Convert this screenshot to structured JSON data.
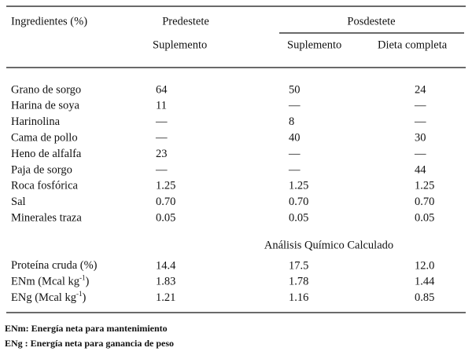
{
  "header": {
    "ingredients": "Ingredientes (%)",
    "predestete": "Predestete",
    "posdestete": "Posdestete",
    "subheaders": [
      "Suplemento",
      "Suplemento",
      "Dieta completa"
    ]
  },
  "ingredients": [
    [
      "Grano de sorgo",
      "64",
      "50",
      "24"
    ],
    [
      "Harina de soya",
      "11",
      "—",
      "—"
    ],
    [
      "Harinolina",
      "—",
      "8",
      "—"
    ],
    [
      "Cama de pollo",
      "—",
      "40",
      "30"
    ],
    [
      "Heno de alfalfa",
      "23",
      "—",
      "—"
    ],
    [
      "Paja de sorgo",
      "—",
      "—",
      "44"
    ],
    [
      "Roca fosfórica",
      "1.25",
      "1.25",
      "1.25"
    ],
    [
      "Sal",
      "0.70",
      "0.70",
      "0.70"
    ],
    [
      "Minerales traza",
      "0.05",
      "0.05",
      "0.05"
    ]
  ],
  "analysis_title": "Análisis Químico Calculado",
  "analysis": [
    {
      "label": [
        "Proteína cruda (%)"
      ],
      "values": [
        "14.4",
        "17.5",
        "12.0"
      ]
    },
    {
      "label": [
        "ENm (Mcal kg",
        "-1",
        ")"
      ],
      "values": [
        "1.83",
        "1.78",
        "1.44"
      ]
    },
    {
      "label": [
        "ENg (Mcal kg",
        "-1",
        ")"
      ],
      "values": [
        "1.21",
        "1.16",
        "0.85"
      ]
    }
  ],
  "footnotes": [
    "ENm: Energía neta para mantenimiento",
    "ENg : Energía neta para ganancia de peso"
  ]
}
